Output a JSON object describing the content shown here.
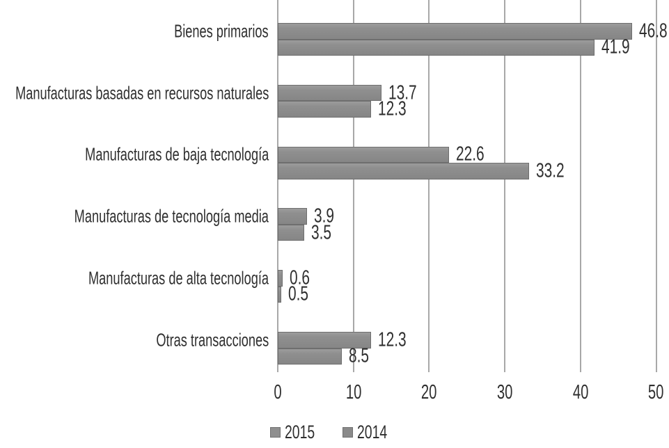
{
  "chart_data": {
    "type": "bar",
    "orientation": "horizontal",
    "title": "",
    "xlabel": "",
    "ylabel": "",
    "categories": [
      "Bienes primarios",
      "Manufacturas basadas en recursos naturales",
      "Manufacturas de baja tecnología",
      "Manufacturas de tecnología media",
      "Manufacturas de alta tecnología",
      "Otras transacciones"
    ],
    "series": [
      {
        "name": "2015",
        "color": "#8f8f8f",
        "values": [
          46.8,
          13.7,
          22.6,
          3.9,
          0.6,
          12.3
        ]
      },
      {
        "name": "2014",
        "color": "#8a8a8a",
        "values": [
          41.9,
          12.3,
          33.2,
          3.5,
          0.5,
          8.5
        ]
      }
    ],
    "value_labels": [
      "46.8",
      "41.9",
      "13.7",
      "12.3",
      "22.6",
      "33.2",
      "3.9",
      "3.5",
      "0.6",
      "0.5",
      "12.3",
      "8.5"
    ],
    "xlim": [
      0,
      50
    ],
    "x_ticks": [
      "0",
      "10",
      "20",
      "30",
      "40",
      "50"
    ],
    "grid": true,
    "legend_position": "bottom",
    "legend": [
      "2015",
      "2014"
    ],
    "colors": {
      "bar_fill": "#8d8d8d",
      "bar_border": "#6e6e6e",
      "gridline": "#a8a8a8",
      "text": "#2f2f2f",
      "background": "#ffffff"
    }
  }
}
